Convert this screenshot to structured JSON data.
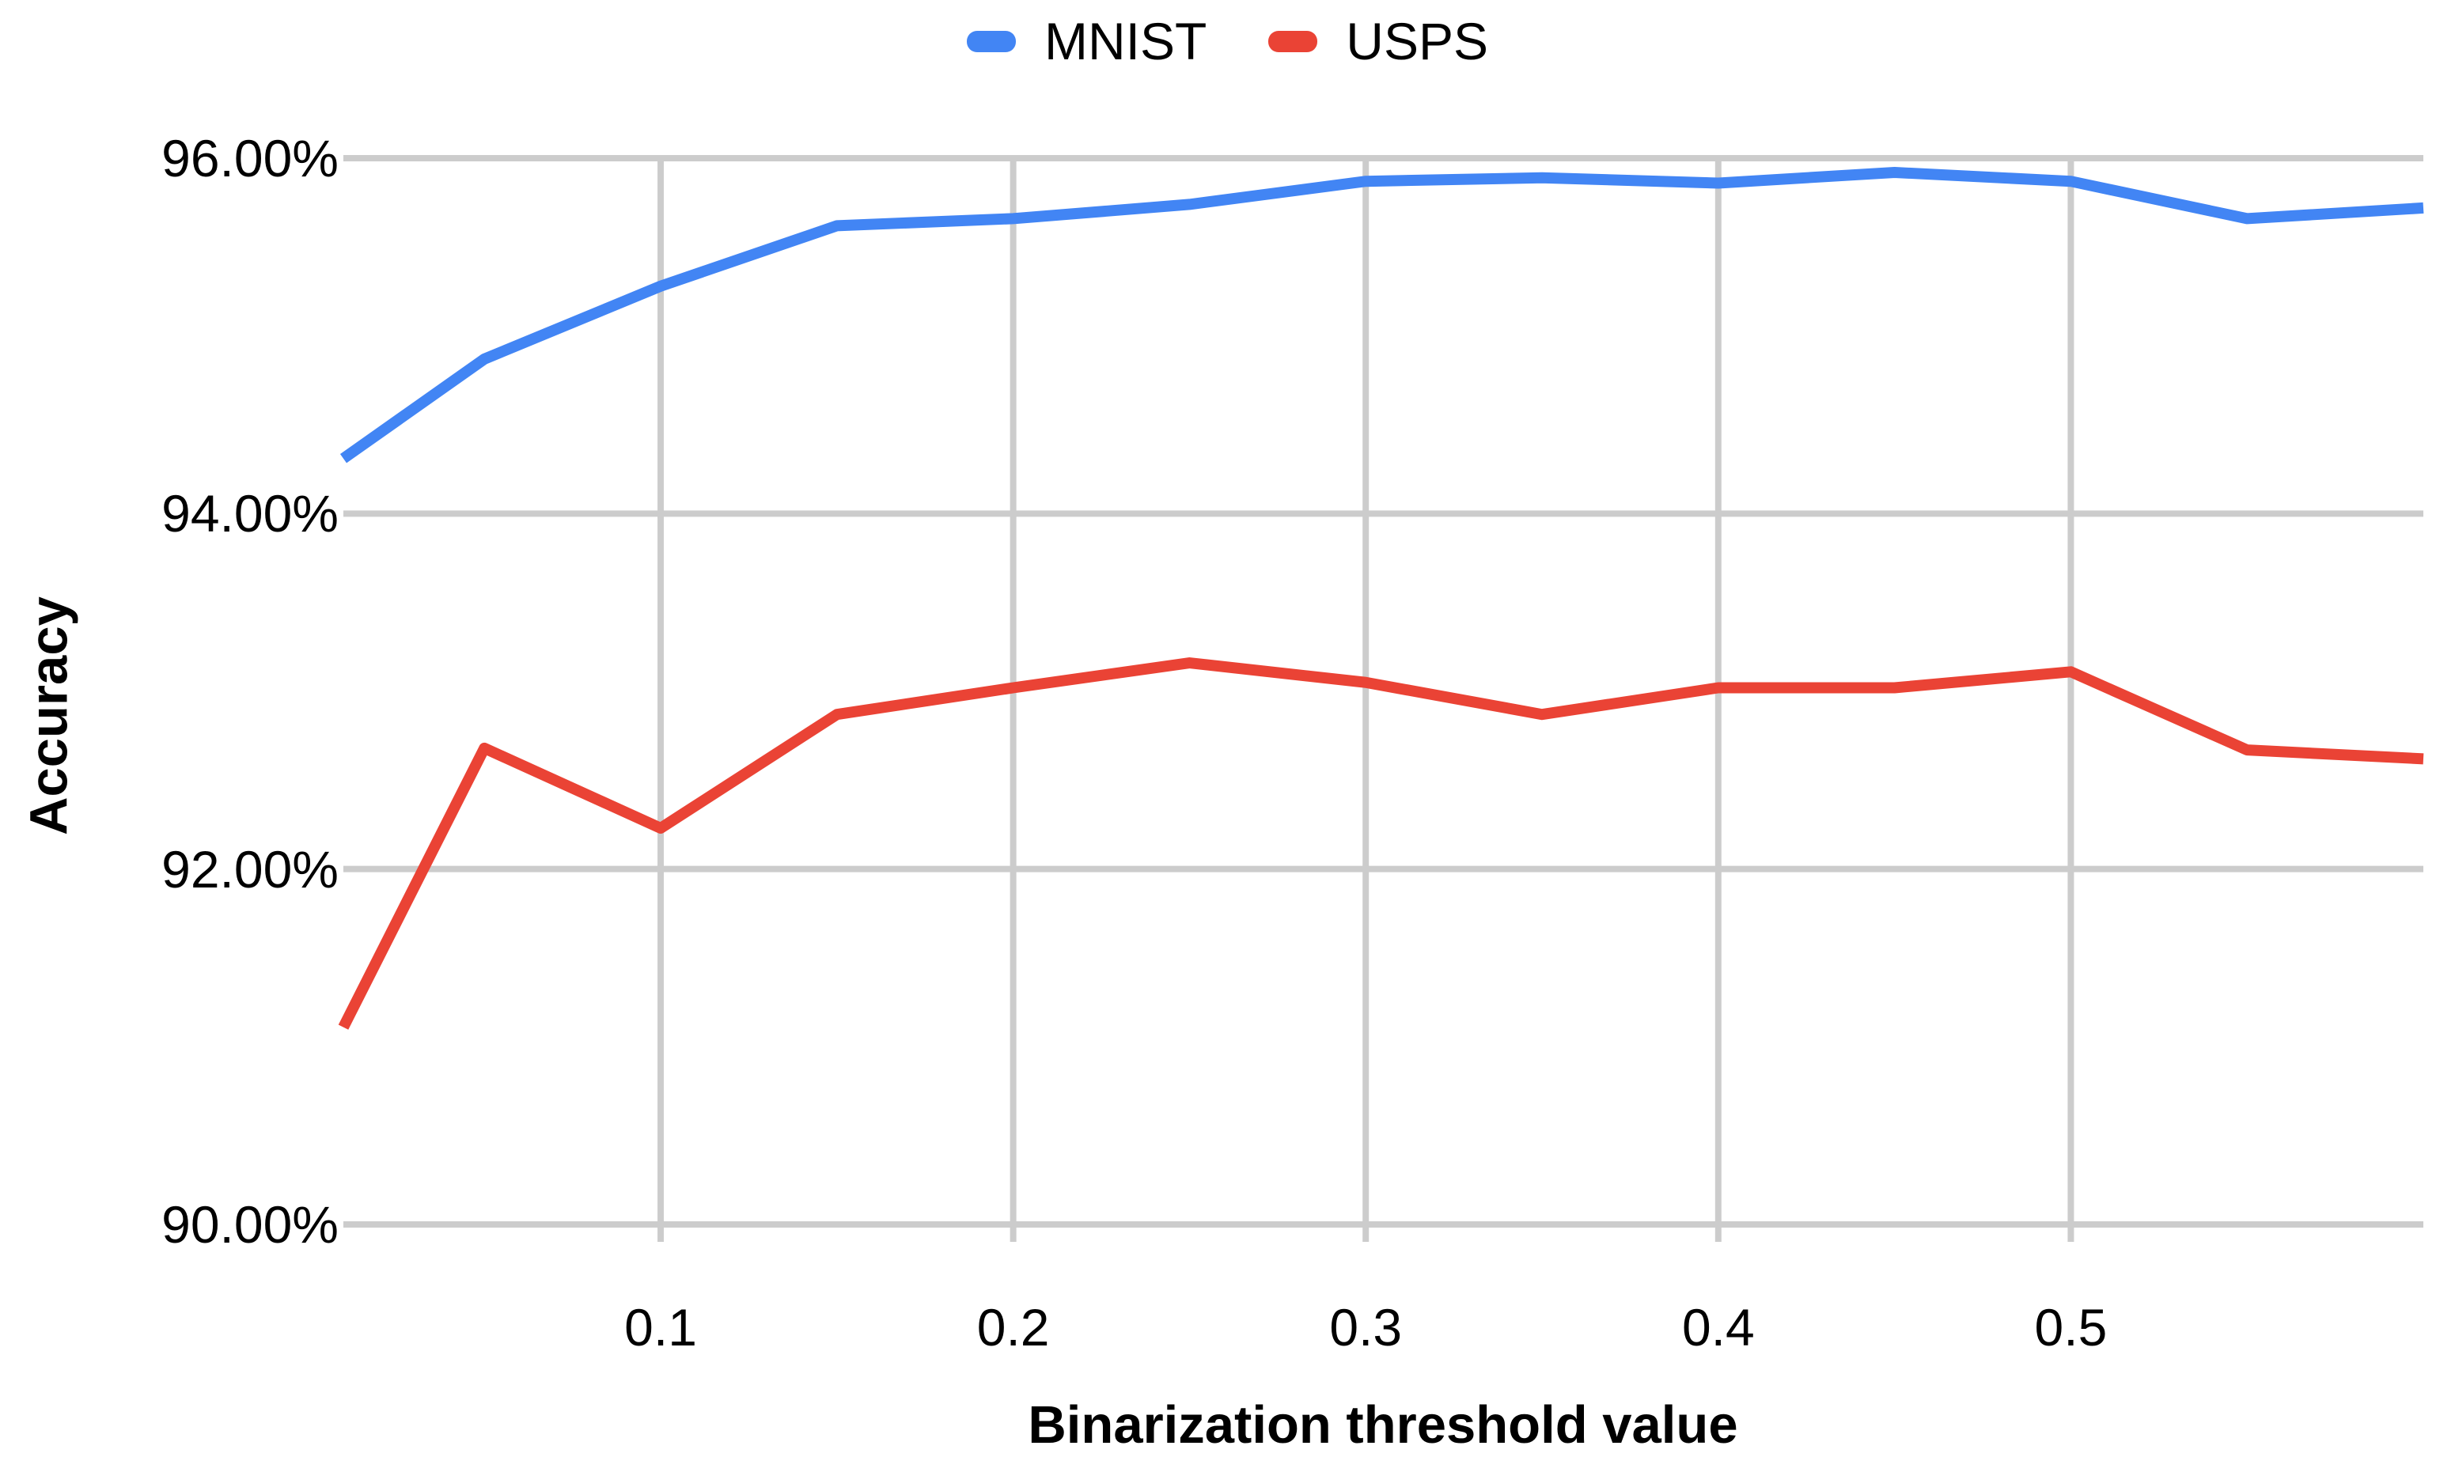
{
  "chart_data": {
    "type": "line",
    "title": "",
    "xlabel": "Binarization threshold value",
    "ylabel": "Accuracy",
    "x": [
      0.01,
      0.05,
      0.1,
      0.15,
      0.2,
      0.25,
      0.3,
      0.35,
      0.4,
      0.45,
      0.5,
      0.55,
      0.6
    ],
    "series": [
      {
        "name": "MNIST",
        "color": "#4285F4",
        "values": [
          94.31,
          94.87,
          95.28,
          95.62,
          95.66,
          95.74,
          95.87,
          95.89,
          95.86,
          95.92,
          95.87,
          95.66,
          95.72
        ]
      },
      {
        "name": "USPS",
        "color": "#EA4335",
        "values": [
          91.11,
          92.68,
          92.23,
          92.87,
          93.02,
          93.16,
          93.05,
          92.87,
          93.02,
          93.02,
          93.11,
          92.67,
          92.62
        ]
      }
    ],
    "xlim": [
      0.01,
      0.6
    ],
    "ylim": [
      90,
      96
    ],
    "x_ticks": [
      0.1,
      0.2,
      0.3,
      0.4,
      0.5
    ],
    "x_tick_labels": [
      "0.1",
      "0.2",
      "0.3",
      "0.4",
      "0.5"
    ],
    "y_ticks": [
      90,
      92,
      94,
      96
    ],
    "y_tick_labels": [
      "90.00%",
      "92.00%",
      "94.00%",
      "96.00%"
    ],
    "grid": true,
    "legend_position": "top-center",
    "colors": {
      "gridline": "#cccccc",
      "background": "#ffffff",
      "text": "#000000"
    }
  }
}
